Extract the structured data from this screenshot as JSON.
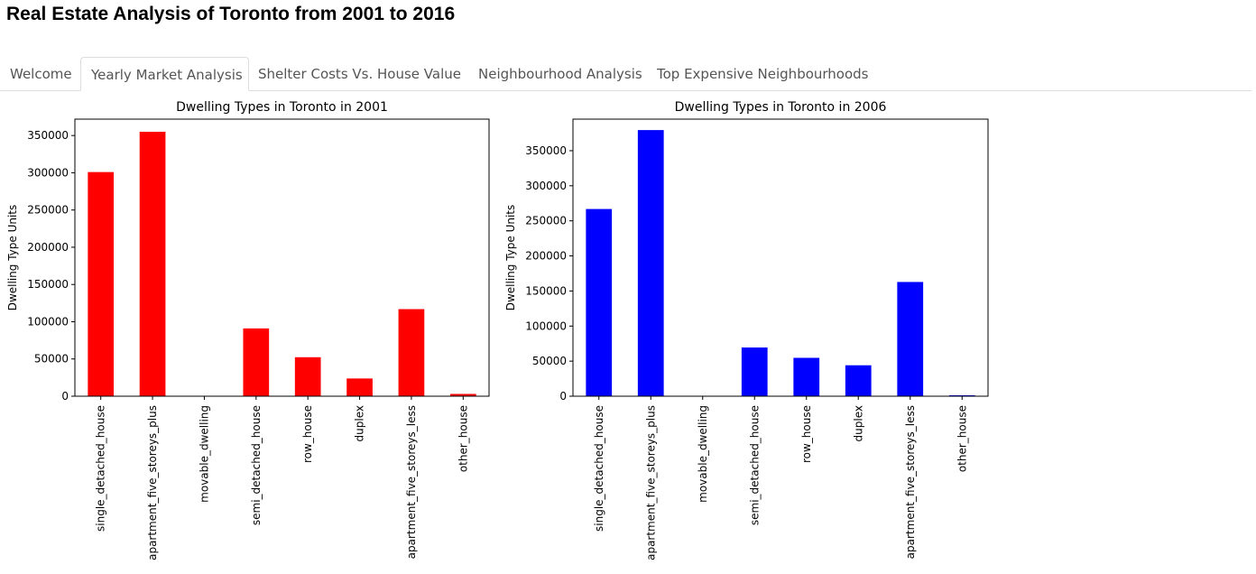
{
  "page": {
    "title": "Real Estate Analysis of Toronto from 2001 to 2016"
  },
  "tabs": [
    {
      "label": "Welcome",
      "active": false
    },
    {
      "label": "Yearly Market Analysis",
      "active": true
    },
    {
      "label": "Shelter Costs Vs. House Value",
      "active": false
    },
    {
      "label": "Neighbourhood Analysis",
      "active": false
    },
    {
      "label": "Top Expensive Neighbourhoods",
      "active": false
    }
  ],
  "chart_data": [
    {
      "type": "bar",
      "title": "Dwelling Types in Toronto in 2001",
      "xlabel": "",
      "ylabel": "Dwelling Type Units",
      "categories": [
        "single_detached_house",
        "apartment_five_storeys_plus",
        "movable_dwelling",
        "semi_detached_house",
        "row_house",
        "duplex",
        "apartment_five_storeys_less",
        "other_house"
      ],
      "values": [
        300930,
        355015,
        75,
        90995,
        52355,
        23785,
        116900,
        3040
      ],
      "ylim": [
        0,
        372000
      ],
      "yticks": [
        0,
        50000,
        100000,
        150000,
        200000,
        250000,
        300000,
        350000
      ],
      "color": "#ff0000",
      "grid": false
    },
    {
      "type": "bar",
      "title": "Dwelling Types in Toronto in 2006",
      "xlabel": "",
      "ylabel": "Dwelling Type Units",
      "categories": [
        "single_detached_house",
        "apartment_five_storeys_plus",
        "movable_dwelling",
        "semi_detached_house",
        "row_house",
        "duplex",
        "apartment_five_storeys_less",
        "other_house"
      ],
      "values": [
        266860,
        379400,
        165,
        69430,
        54690,
        44095,
        162850,
        1335
      ],
      "ylim": [
        0,
        395000
      ],
      "yticks": [
        0,
        50000,
        100000,
        150000,
        200000,
        250000,
        300000,
        350000
      ],
      "color": "#0000ff",
      "grid": false
    }
  ]
}
